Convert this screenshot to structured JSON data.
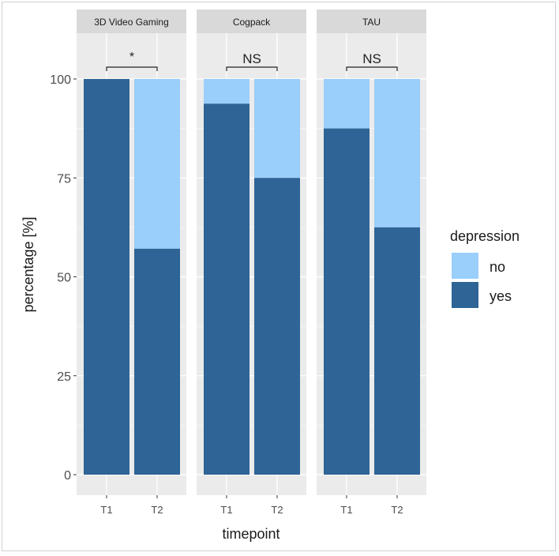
{
  "chart_data": {
    "type": "bar",
    "stacked": true,
    "facets": [
      "3D Video Gaming",
      "Cogpack",
      "TAU"
    ],
    "categories": [
      "T1",
      "T2"
    ],
    "series": [
      {
        "name": "yes",
        "color": "#2E6496",
        "values": [
          [
            100,
            57.1
          ],
          [
            93.75,
            75
          ],
          [
            87.5,
            62.5
          ]
        ]
      },
      {
        "name": "no",
        "color": "#9ACEFB",
        "values": [
          [
            0,
            42.9
          ],
          [
            6.25,
            25
          ],
          [
            12.5,
            37.5
          ]
        ]
      }
    ],
    "annotations": [
      "*",
      "NS",
      "NS"
    ],
    "xlabel": "timepoint",
    "ylabel": "percentage [%]",
    "ylim": [
      0,
      100
    ],
    "yticks": [
      0,
      25,
      50,
      75,
      100
    ],
    "grid": true,
    "legend": {
      "title": "depression",
      "entries": [
        "no",
        "yes"
      ],
      "placement": "right"
    }
  }
}
